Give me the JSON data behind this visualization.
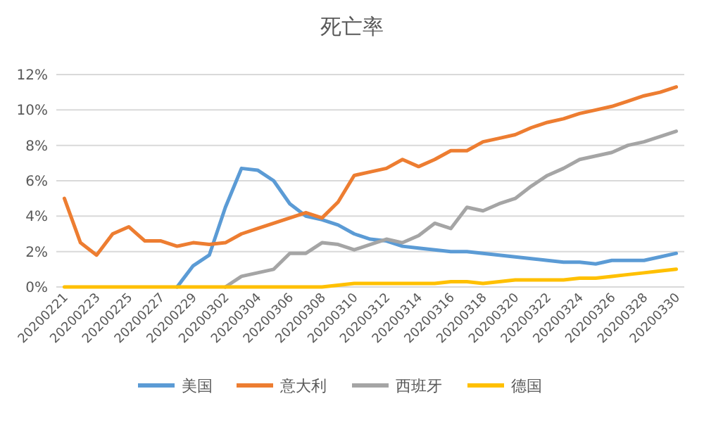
{
  "chart_data": {
    "type": "line",
    "title": "死亡率",
    "categories": [
      "20200221",
      null,
      "20200223",
      null,
      "20200225",
      null,
      "20200227",
      null,
      "20200229",
      null,
      "20200302",
      null,
      "20200304",
      null,
      "20200306",
      null,
      "20200308",
      null,
      "20200310",
      null,
      "20200312",
      null,
      "20200314",
      null,
      "20200316",
      null,
      "20200318",
      null,
      "20200320",
      null,
      "20200322",
      null,
      "20200324",
      null,
      "20200326",
      null,
      "20200328",
      null,
      "20200330"
    ],
    "series": [
      {
        "name": "美国",
        "color": "#5b9bd5",
        "values": [
          null,
          null,
          null,
          null,
          null,
          null,
          null,
          0,
          1.2,
          1.8,
          4.5,
          6.7,
          6.6,
          6.0,
          4.7,
          4.0,
          3.8,
          3.5,
          3.0,
          2.7,
          2.6,
          2.3,
          2.2,
          2.1,
          2.0,
          2.0,
          1.9,
          1.8,
          1.7,
          1.6,
          1.5,
          1.4,
          1.4,
          1.3,
          1.5,
          1.5,
          1.5,
          1.7,
          1.9
        ]
      },
      {
        "name": "意大利",
        "color": "#ed7d31",
        "values": [
          5.0,
          2.5,
          1.8,
          3.0,
          3.4,
          2.6,
          2.6,
          2.3,
          2.5,
          2.4,
          2.5,
          3.0,
          3.3,
          3.6,
          3.9,
          4.2,
          3.9,
          4.8,
          6.3,
          6.5,
          6.7,
          7.2,
          6.8,
          7.2,
          7.7,
          7.7,
          8.2,
          8.4,
          8.6,
          9.0,
          9.3,
          9.5,
          9.8,
          10.0,
          10.2,
          10.5,
          10.8,
          11.0,
          11.3
        ]
      },
      {
        "name": "西班牙",
        "color": "#a5a5a5",
        "values": [
          null,
          null,
          null,
          null,
          null,
          null,
          null,
          null,
          null,
          null,
          0,
          0.6,
          0.8,
          1.0,
          1.9,
          1.9,
          2.5,
          2.4,
          2.1,
          2.4,
          2.7,
          2.5,
          2.9,
          3.6,
          3.3,
          4.5,
          4.3,
          4.7,
          5.0,
          5.7,
          6.3,
          6.7,
          7.2,
          7.4,
          7.6,
          8.0,
          8.2,
          8.5,
          8.8
        ]
      },
      {
        "name": "德国",
        "color": "#ffc000",
        "values": [
          0,
          0,
          0,
          0,
          0,
          0,
          0,
          0,
          0,
          0,
          0,
          0,
          0,
          0,
          0,
          0,
          0,
          0.1,
          0.2,
          0.2,
          0.2,
          0.2,
          0.2,
          0.2,
          0.3,
          0.3,
          0.2,
          0.3,
          0.4,
          0.4,
          0.4,
          0.4,
          0.5,
          0.5,
          0.6,
          0.7,
          0.8,
          0.9,
          1.0
        ]
      }
    ],
    "ylim": [
      0,
      12
    ],
    "yticks": [
      {
        "value": 0,
        "label": "0%"
      },
      {
        "value": 2,
        "label": "2%"
      },
      {
        "value": 4,
        "label": "4%"
      },
      {
        "value": 6,
        "label": "6%"
      },
      {
        "value": 8,
        "label": "8%"
      },
      {
        "value": 10,
        "label": "10%"
      },
      {
        "value": 12,
        "label": "12%"
      }
    ],
    "grid": "y",
    "legend": "bottom",
    "line_style": "solid"
  }
}
